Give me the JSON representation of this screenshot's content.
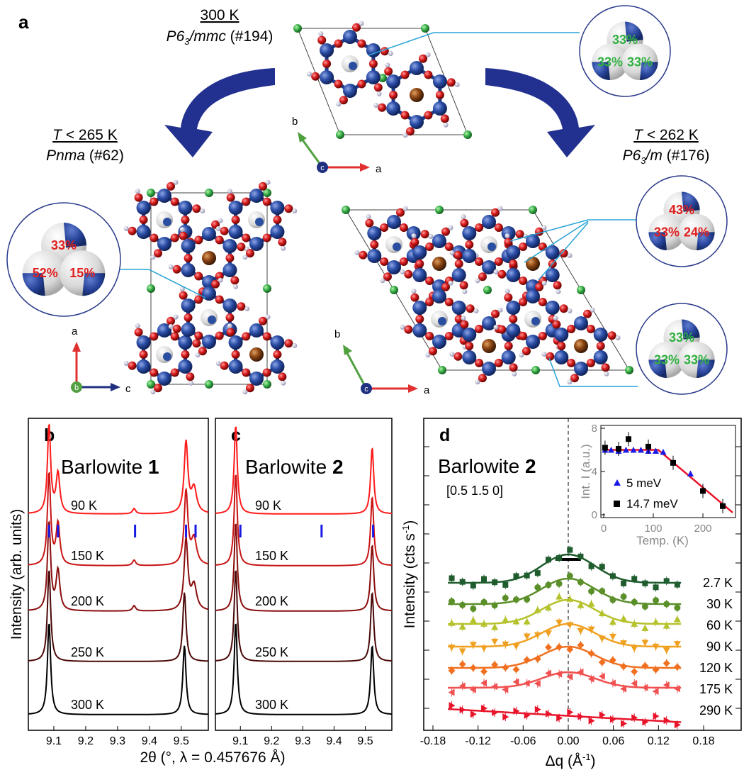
{
  "panel_a": {
    "label": "a",
    "top": {
      "temp": "300 K",
      "group_pre": "P6",
      "group_sub": "3",
      "group_post": "/mmc",
      "number": " (#194)",
      "occupancies": [
        "33%",
        "33%",
        "33%"
      ]
    },
    "left": {
      "temp_pre": "T",
      "temp_post": " < 265 K",
      "group": "Pnma",
      "number": " (#62)",
      "occupancies": [
        "33%",
        "52%",
        "15%"
      ]
    },
    "right": {
      "temp_pre": "T",
      "temp_post": " < 262 K",
      "group_pre": "P6",
      "group_sub": "3",
      "group_post": "/m",
      "number": " (#176)",
      "occupancies_upper": [
        "43%",
        "33%",
        "24%"
      ],
      "occupancies_lower": [
        "33%",
        "33%",
        "33%"
      ]
    },
    "axes_top": {
      "a": "a",
      "b": "b",
      "c": "c"
    },
    "axes_left": {
      "a": "a",
      "b": "b",
      "c": "c"
    },
    "axes_right": {
      "a": "a",
      "b": "b",
      "c": "c"
    },
    "colors": {
      "cu": "#2a4fa0",
      "o": "#d62020",
      "br": "#8b4513",
      "cl": "#3cb44b",
      "h": "#c8c8e0",
      "arrow": "#22318f",
      "axis_a": "#e03030",
      "axis_b": "#50a040",
      "axis_c": "#203080",
      "occ_green": "#30b040",
      "occ_red": "#e02020",
      "leader": "#29a3d6"
    }
  },
  "panel_b": {
    "label": "b",
    "title_pre": "Barlowite ",
    "title_bold": "1",
    "temps": [
      "90 K",
      "150 K",
      "200 K",
      "250 K",
      "300 K"
    ],
    "colors": [
      "#ff1a1a",
      "#c81414",
      "#8a0d0d",
      "#4a0808",
      "#000000"
    ],
    "tick_marks": [
      9.085,
      9.113,
      9.355,
      9.515,
      9.545
    ]
  },
  "panel_c": {
    "label": "c",
    "title_pre": "Barlowite ",
    "title_bold": "2",
    "temps": [
      "90 K",
      "150 K",
      "200 K",
      "250 K",
      "300 K"
    ],
    "colors": [
      "#ff1a1a",
      "#c81414",
      "#8a0d0d",
      "#4a0808",
      "#000000"
    ],
    "tick_marks": [
      9.1,
      9.36,
      9.525
    ]
  },
  "bc_axis": {
    "xlabel_pre": "2θ (°, λ = 0.457676 ",
    "xlabel_unit": "Å",
    "xlabel_post": ")",
    "ylabel": "Intensity (arb. units)",
    "ticks": [
      "9.1",
      "9.2",
      "9.3",
      "9.4",
      "9.5"
    ]
  },
  "panel_d": {
    "label": "d",
    "title_pre": "Barlowite ",
    "title_bold": "2",
    "subtitle": "[0.5 1.5 0]",
    "ylabel": "Intensity (cts s",
    "ylabel_sup": "-1",
    "ylabel_post": ")",
    "xlabel": "Δq (Å",
    "xlabel_sup": "-1",
    "xlabel_post": ")",
    "xticks": [
      "-0.18",
      "-0.12",
      "-0.06",
      "0.00",
      "0.06",
      "0.12",
      "0.18"
    ],
    "temps": [
      "2.7 K",
      "30 K",
      "60 K",
      "90 K",
      "120 K",
      "175 K",
      "290 K"
    ],
    "colors": [
      "#1f5c2e",
      "#5b8f2a",
      "#b5c22b",
      "#f0a020",
      "#f07020",
      "#f05050",
      "#e8142a"
    ],
    "inset": {
      "ylabel": "Int. I (a.u.)",
      "xlabel": "Temp. (K)",
      "xticks": [
        "0",
        "100",
        "200"
      ],
      "yticks": [
        "0",
        "4",
        "8"
      ],
      "legend": [
        "5 meV",
        "14.7 meV"
      ]
    }
  },
  "chart_data": {
    "type": "scatter",
    "title": "",
    "xlabel": "Temp. (K)",
    "ylabel": "Int. I (a.u.)",
    "xlim": [
      0,
      260
    ],
    "ylim": [
      0,
      8
    ],
    "series": [
      {
        "name": "5 meV",
        "color": "#1a1ae6",
        "x": [
          2.7,
          15,
          30,
          45,
          60,
          75,
          90,
          105,
          120,
          175
        ],
        "y": [
          6.0,
          6.0,
          5.9,
          6.0,
          6.0,
          6.0,
          5.9,
          5.9,
          5.8,
          3.8
        ]
      },
      {
        "name": "14.7 meV",
        "color": "#000000",
        "x": [
          2.7,
          30,
          50,
          90,
          140,
          200,
          240
        ],
        "y": [
          6.2,
          6.1,
          7.0,
          6.3,
          4.8,
          2.2,
          0.8
        ]
      }
    ]
  }
}
